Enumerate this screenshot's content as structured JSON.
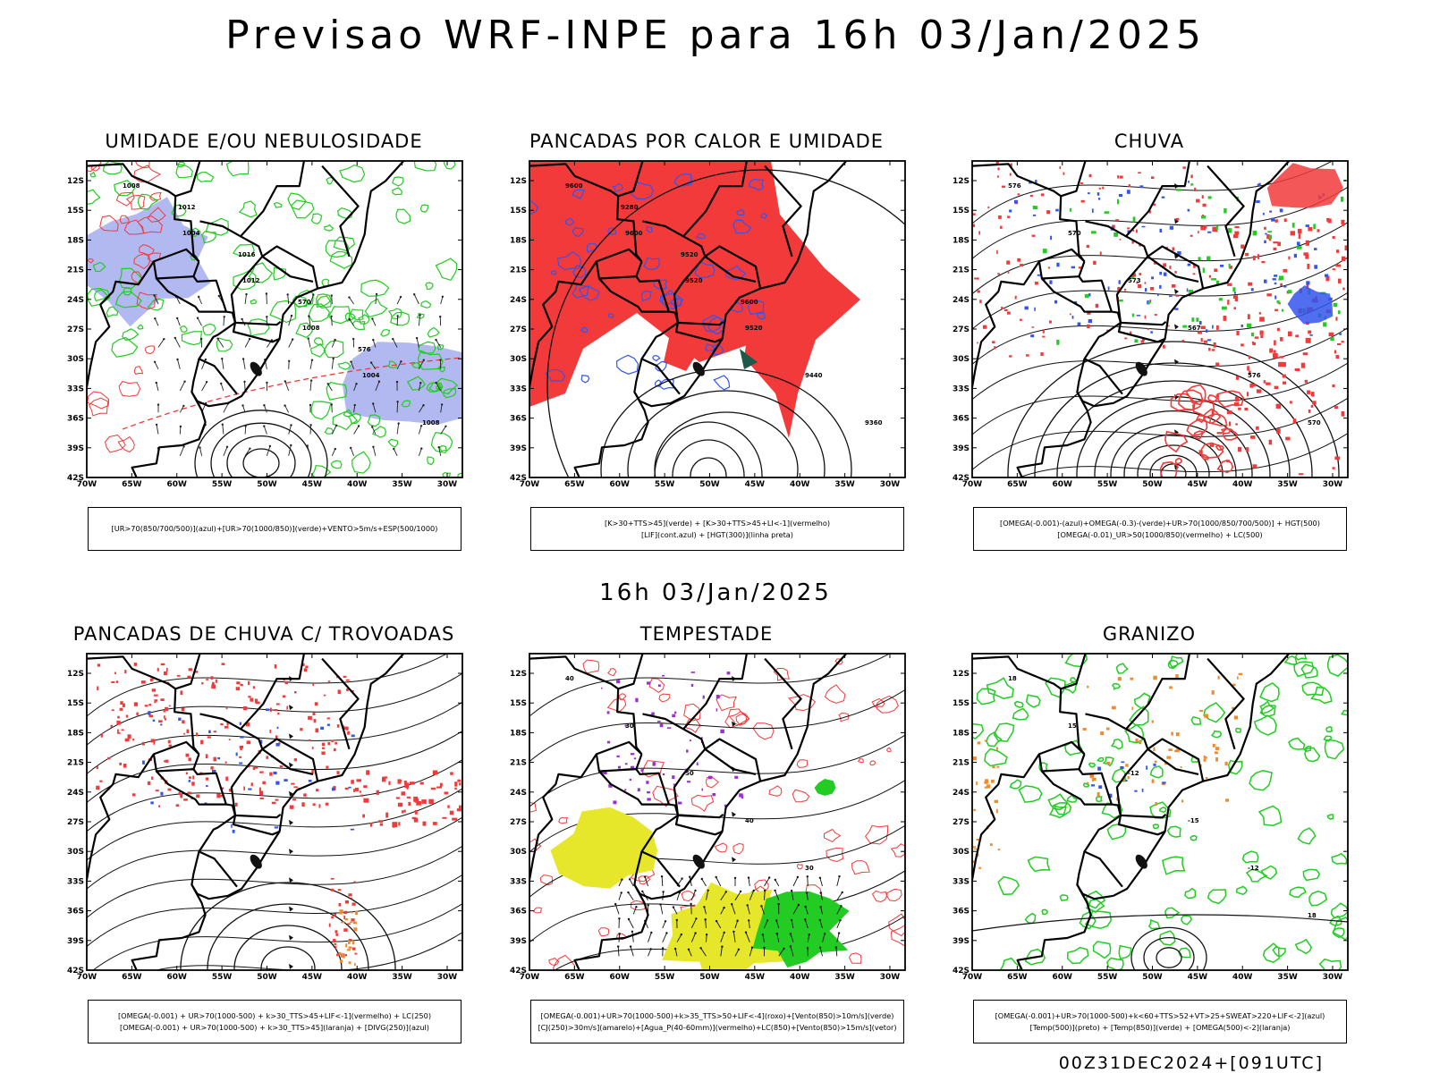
{
  "header": {
    "title": "Previsao WRF-INPE  para 16h 03/Jan/2025"
  },
  "mid_date": "16h 03/Jan/2025",
  "footer_run": "00Z31DEC2024+[091UTC]",
  "colors": {
    "red": "#f23a3a",
    "green": "#22cc22",
    "blue": "#3355ee",
    "lavender": "#aab0ee",
    "yellow": "#e6e62a",
    "orange": "#f08a2a",
    "purple": "#9a30d0",
    "darkgreen": "#1e5a4a"
  },
  "axes": {
    "lat_ticks": [
      "12S",
      "15S",
      "18S",
      "21S",
      "24S",
      "27S",
      "30S",
      "33S",
      "36S",
      "39S",
      "42S"
    ],
    "lon_ticks": [
      "70W",
      "65W",
      "60W",
      "55W",
      "50W",
      "45W",
      "40W",
      "35W",
      "30W"
    ]
  },
  "panels": [
    {
      "title": "UMIDADE E/OU NEBULOSIDADE",
      "legend": [
        "[UR>70(850/700/500)](azul)+[UR>70(1000/850)](verde)+VENTO>5m/s+ESP(500/1000)"
      ],
      "contour_labels": [
        "1008",
        "1004",
        "1012",
        "1008",
        "1004",
        "1008",
        "1012",
        "1016",
        "570",
        "576"
      ]
    },
    {
      "title": "PANCADAS POR CALOR E UMIDADE",
      "legend": [
        "[K>30+TTS>45](verde) + [K>30+TTS>45+LI<-1](vermelho)",
        "[LIF](cont.azul) + [HGT(300)](linha preta)"
      ],
      "contour_labels": [
        "9600",
        "9600",
        "9520",
        "9520",
        "9440",
        "9360",
        "9280",
        "9520",
        "9600"
      ]
    },
    {
      "title": "CHUVA",
      "legend": [
        "[OMEGA(-0.001)-(azul)+OMEGA(-0.3)-(verde)+UR>70(1000/850/700/500)] + HGT(500)",
        "[OMEGA(-0.01)_UR>50(1000/850)(vermelho) + LC(500)"
      ],
      "contour_labels": [
        "576",
        "570",
        "573",
        "567",
        "576",
        "570"
      ]
    },
    {
      "title": "PANCADAS DE CHUVA C/ TROVOADAS",
      "legend": [
        "[OMEGA(-0.001) + UR>70(1000-500) + k>30_TTS>45+LIF<-1](vermelho) + LC(250)",
        "[OMEGA(-0.001) + UR>70(1000-500) + k>30_TTS>45](laranja) + [DIVG(250)](azul)"
      ],
      "contour_labels": []
    },
    {
      "title": "TEMPESTADE",
      "legend": [
        "[OMEGA(-0.001)+UR>70(1000-500)+k>35_TTS>50+LIF<-4](roxo)+[Vento(850)>10m/s](verde)",
        "[CJ(250)>30m/s](amarelo)+[Agua_P(40-60mm)](vermelho)+LC(850)+[Vento(850)>15m/s](vetor)"
      ],
      "contour_labels": [
        "40",
        "30",
        "50",
        "40",
        "30"
      ]
    },
    {
      "title": "GRANIZO",
      "legend": [
        "[OMEGA(-0.001)+UR>70(1000-500)+k<60+TTS>52+VT>25+SWEAT>220+LIF<-2](azul)",
        "[Temp(500)](preto) + [Temp(850)](verde) + [OMEGA(500)<-2](laranja)"
      ],
      "contour_labels": [
        "18",
        "15",
        "-12",
        "-15",
        "-12",
        "18"
      ]
    }
  ]
}
